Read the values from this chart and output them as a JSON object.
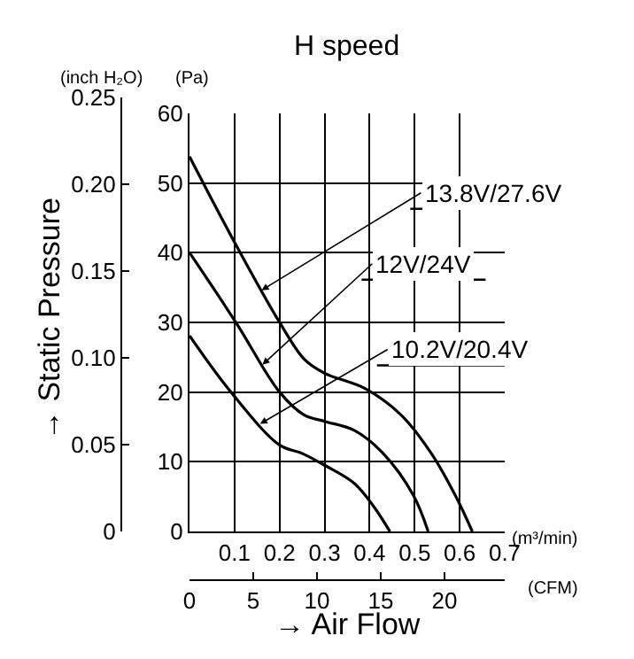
{
  "chart_data": {
    "type": "line",
    "title": "H speed",
    "xlabel": "→ Air Flow",
    "ylabel": "→ Static Pressure",
    "x2label": "(CFM)",
    "y2label": "(Pa)",
    "series": [
      {
        "name": "13.8V/27.6V",
        "color": "#000000",
        "axis": "y2",
        "x": [
          0,
          0.1,
          0.2,
          0.255,
          0.3,
          0.39,
          0.47,
          0.537,
          0.59,
          0.628
        ],
        "values": [
          53.8,
          41.5,
          30,
          24.7,
          22.7,
          20.5,
          16.7,
          11.2,
          5.2,
          0
        ]
      },
      {
        "name": "12V/24V",
        "color": "#000000",
        "axis": "y2",
        "x": [
          0,
          0.105,
          0.2,
          0.255,
          0.3,
          0.366,
          0.43,
          0.497,
          0.53
        ],
        "values": [
          40,
          29.8,
          20,
          16.7,
          15.8,
          14.5,
          11.2,
          5.2,
          0
        ]
      },
      {
        "name": "10.2V/20.4V",
        "color": "#000000",
        "axis": "y2",
        "x": [
          0,
          0.092,
          0.2,
          0.25,
          0.3,
          0.366,
          0.41,
          0.445
        ],
        "values": [
          28.1,
          20,
          12.4,
          11.2,
          9.5,
          6.9,
          3.5,
          0
        ]
      }
    ],
    "annotations": [
      "(m³/min)",
      "(inch H₂O)"
    ],
    "xlim": [
      0,
      0.7
    ],
    "xticks": [
      0.1,
      0.2,
      0.3,
      0.4,
      0.5,
      0.6,
      0.7
    ],
    "ylim": [
      0,
      0.25
    ],
    "yticks": [
      0,
      0.05,
      {
        "value": 0.1,
        "label": "0.10"
      },
      0.15,
      {
        "value": 0.2,
        "label": "0.20"
      },
      0.25
    ],
    "y2lim": [
      0,
      60
    ],
    "y2ticks": [
      0,
      10,
      20,
      30,
      40,
      50,
      60
    ],
    "x2lim": [
      0,
      24.72
    ],
    "x2ticks": [
      0,
      5,
      10,
      15,
      20
    ],
    "grid": true,
    "legend": false,
    "marker": "none",
    "line_style": "solid"
  }
}
